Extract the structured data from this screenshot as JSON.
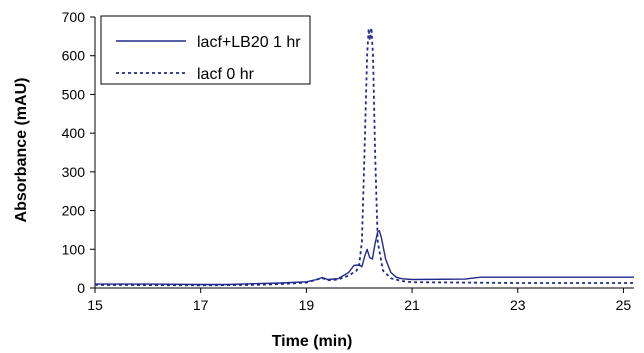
{
  "chart_data": {
    "type": "line",
    "title": "",
    "xlabel": "Time (min)",
    "ylabel": "Absorbance (mAU)",
    "xlim": [
      15,
      25.2
    ],
    "ylim": [
      0,
      700
    ],
    "xticks": [
      15,
      17,
      19,
      21,
      23,
      25
    ],
    "yticks": [
      0,
      100,
      200,
      300,
      400,
      500,
      600,
      700
    ],
    "grid": false,
    "legend_position": "top-left",
    "series": [
      {
        "name": "lacf+LB20 1 hr",
        "style": "solid",
        "color": "#1f2a8c",
        "points": [
          [
            15,
            10
          ],
          [
            16,
            10
          ],
          [
            17,
            9
          ],
          [
            17.5,
            9
          ],
          [
            18,
            11
          ],
          [
            18.5,
            13
          ],
          [
            19,
            16
          ],
          [
            19.2,
            22
          ],
          [
            19.3,
            27
          ],
          [
            19.4,
            22
          ],
          [
            19.6,
            24
          ],
          [
            19.8,
            40
          ],
          [
            19.9,
            58
          ],
          [
            20.0,
            60
          ],
          [
            20.05,
            55
          ],
          [
            20.1,
            80
          ],
          [
            20.15,
            100
          ],
          [
            20.2,
            78
          ],
          [
            20.25,
            75
          ],
          [
            20.3,
            115
          ],
          [
            20.35,
            145
          ],
          [
            20.38,
            148
          ],
          [
            20.42,
            130
          ],
          [
            20.5,
            75
          ],
          [
            20.6,
            40
          ],
          [
            20.7,
            28
          ],
          [
            20.8,
            24
          ],
          [
            21,
            22
          ],
          [
            22,
            23
          ],
          [
            22.3,
            28
          ],
          [
            23,
            28
          ],
          [
            24,
            28
          ],
          [
            25.2,
            28
          ]
        ]
      },
      {
        "name": "lacf 0 hr",
        "style": "dotted",
        "color": "#1f2a8c",
        "points": [
          [
            15,
            8
          ],
          [
            17,
            7
          ],
          [
            18,
            8
          ],
          [
            18.5,
            10
          ],
          [
            19,
            14
          ],
          [
            19.2,
            22
          ],
          [
            19.3,
            26
          ],
          [
            19.4,
            20
          ],
          [
            19.6,
            22
          ],
          [
            19.8,
            32
          ],
          [
            19.95,
            45
          ],
          [
            20.0,
            60
          ],
          [
            20.05,
            120
          ],
          [
            20.1,
            350
          ],
          [
            20.15,
            600
          ],
          [
            20.18,
            670
          ],
          [
            20.2,
            640
          ],
          [
            20.23,
            672
          ],
          [
            20.26,
            600
          ],
          [
            20.3,
            350
          ],
          [
            20.35,
            120
          ],
          [
            20.45,
            45
          ],
          [
            20.6,
            25
          ],
          [
            20.8,
            18
          ],
          [
            21,
            15
          ],
          [
            22,
            14
          ],
          [
            23,
            13
          ],
          [
            24,
            13
          ],
          [
            25.2,
            13
          ]
        ]
      }
    ]
  }
}
